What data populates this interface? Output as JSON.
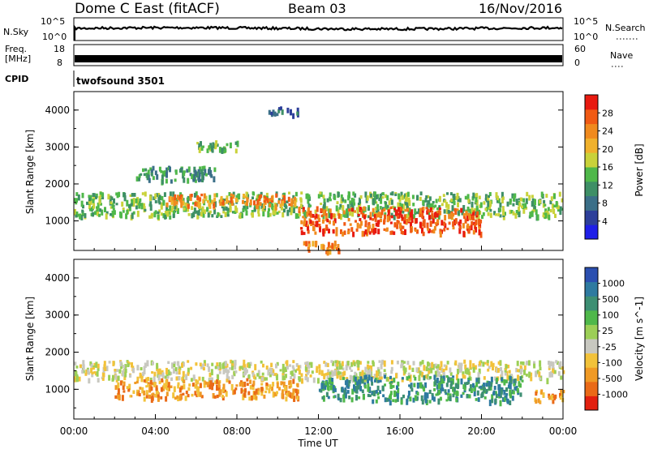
{
  "header": {
    "station": "Dome C East (fitACF)",
    "beam": "Beam 03",
    "date": "16/Nov/2016"
  },
  "panels": {
    "nsky_label": "N.Sky",
    "nsky_ticks": [
      "10^5",
      "10^0"
    ],
    "nsearch_label": "N.Search",
    "nsearch_ticks": [
      "10^5",
      "10^0"
    ],
    "freq_label_1": "Freq.",
    "freq_label_2": "[MHz]",
    "freq_ticks": [
      "18",
      "8"
    ],
    "nave_label": "Nave",
    "nave_ticks": [
      "60",
      "0"
    ],
    "cpid_label": "CPID",
    "cpid_text": "twofsound 3501"
  },
  "colors": {
    "power_scale": [
      "#1f1fe8",
      "#2d3f9a",
      "#3b6f88",
      "#3e8f66",
      "#4fb84a",
      "#c9d23a",
      "#f0b12c",
      "#f08a1e",
      "#f05a14",
      "#e81a10"
    ],
    "velocity_scale": [
      "#2b4fb0",
      "#2e7aa0",
      "#3d8f73",
      "#4fb84a",
      "#9ccf56",
      "#c8c8c0",
      "#f2c23a",
      "#f09a25",
      "#ea6a17",
      "#e2200f"
    ]
  },
  "chart_data": [
    {
      "type": "heatmap",
      "name": "power",
      "xlabel": "",
      "ylabel": "Slant Range [km]",
      "x_ticks": [
        "00:00",
        "04:00",
        "08:00",
        "12:00",
        "16:00",
        "20:00",
        "00:00"
      ],
      "y_ticks": [
        1000,
        2000,
        3000,
        4000
      ],
      "ylim": [
        200,
        4500
      ],
      "xlim_hours": [
        0,
        24
      ],
      "colorbar": {
        "label": "Power [dB]",
        "ticks": [
          4,
          8,
          12,
          16,
          20,
          24,
          28
        ],
        "range": [
          0,
          32
        ]
      },
      "echo_regions": [
        {
          "hours": [
            0,
            24
          ],
          "range_km": [
            1150,
            1800
          ],
          "value": 14
        },
        {
          "hours": [
            4.5,
            11
          ],
          "range_km": [
            1450,
            1750
          ],
          "value": 25
        },
        {
          "hours": [
            11,
            20
          ],
          "range_km": [
            700,
            1400
          ],
          "value": 27
        },
        {
          "hours": [
            11,
            13
          ],
          "range_km": [
            200,
            500
          ],
          "value": 24
        },
        {
          "hours": [
            6,
            8
          ],
          "range_km": [
            2900,
            3200
          ],
          "value": 15
        },
        {
          "hours": [
            9.5,
            11
          ],
          "range_km": [
            3900,
            4100
          ],
          "value": 6
        },
        {
          "hours": [
            3,
            7
          ],
          "range_km": [
            2100,
            2500
          ],
          "value": 9
        }
      ]
    },
    {
      "type": "heatmap",
      "name": "velocity",
      "xlabel": "Time UT",
      "ylabel": "Slant Range [km]",
      "x_ticks": [
        "00:00",
        "04:00",
        "08:00",
        "12:00",
        "16:00",
        "20:00",
        "00:00"
      ],
      "y_ticks": [
        1000,
        2000,
        3000,
        4000
      ],
      "ylim": [
        200,
        4500
      ],
      "xlim_hours": [
        0,
        24
      ],
      "colorbar": {
        "label": "Velocity [m s^-1]",
        "ticks": [
          "1000",
          "500",
          "100",
          "25",
          "-25",
          "-100",
          "-500",
          "-1000"
        ]
      },
      "echo_regions": [
        {
          "hours": [
            0,
            24
          ],
          "range_km": [
            1300,
            1800
          ],
          "value": 0
        },
        {
          "hours": [
            2,
            11
          ],
          "range_km": [
            800,
            1300
          ],
          "value": -120
        },
        {
          "hours": [
            12,
            22
          ],
          "range_km": [
            700,
            1400
          ],
          "value": 150
        },
        {
          "hours": [
            22.5,
            24
          ],
          "range_km": [
            700,
            1000
          ],
          "value": -400
        }
      ]
    }
  ]
}
